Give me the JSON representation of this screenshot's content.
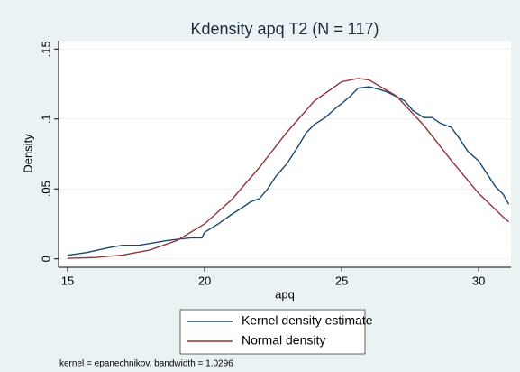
{
  "chart_data": {
    "type": "line",
    "title": "Kdensity apq T2 (N = 117)",
    "x_label": "apq",
    "y_label": "Density",
    "note": "kernel = epanechnikov, bandwidth = 1.0296",
    "xlim": [
      14.67,
      31.18
    ],
    "xticks": [
      15,
      20,
      25,
      30
    ],
    "ylim": [
      -0.006,
      0.156
    ],
    "yticks": [
      0,
      {
        "value": 0.05,
        "label": ".05"
      },
      {
        "value": 0.1,
        "label": ".1"
      },
      {
        "value": 0.15,
        "label": ".15"
      }
    ],
    "grid": true,
    "series": [
      {
        "name": "Kernel density estimate",
        "color": "#1a476f",
        "x": [
          15,
          15.7,
          16.5,
          17,
          17.6,
          18,
          18.6,
          19,
          19.5,
          19.9,
          20,
          20.5,
          21,
          21.4,
          21.7,
          22,
          22.3,
          22.6,
          23,
          23.4,
          23.7,
          24,
          24.4,
          24.8,
          25,
          25.3,
          25.6,
          26,
          26.4,
          26.7,
          27,
          27.3,
          27.6,
          28,
          28.3,
          28.6,
          29,
          29.3,
          29.6,
          30,
          30.3,
          30.6,
          30.9,
          31.1
        ],
        "values": [
          0.0026,
          0.0045,
          0.008,
          0.0097,
          0.0097,
          0.011,
          0.013,
          0.014,
          0.015,
          0.015,
          0.019,
          0.025,
          0.032,
          0.037,
          0.041,
          0.043,
          0.05,
          0.059,
          0.068,
          0.08,
          0.09,
          0.096,
          0.101,
          0.108,
          0.111,
          0.116,
          0.122,
          0.123,
          0.121,
          0.119,
          0.116,
          0.113,
          0.106,
          0.101,
          0.101,
          0.097,
          0.094,
          0.086,
          0.077,
          0.07,
          0.061,
          0.052,
          0.046,
          0.039
        ]
      },
      {
        "name": "Normal density",
        "color": "#90353b",
        "x": [
          15,
          16,
          17,
          18,
          19,
          20,
          21,
          22,
          23,
          24,
          25,
          25.6,
          26,
          27,
          28,
          29,
          30,
          31,
          31.1
        ],
        "values": [
          0.0004,
          0.001,
          0.0027,
          0.0063,
          0.0132,
          0.025,
          0.0426,
          0.0654,
          0.0905,
          0.1128,
          0.1266,
          0.129,
          0.1279,
          0.1164,
          0.0954,
          0.0704,
          0.0468,
          0.028,
          0.0265
        ]
      }
    ]
  }
}
